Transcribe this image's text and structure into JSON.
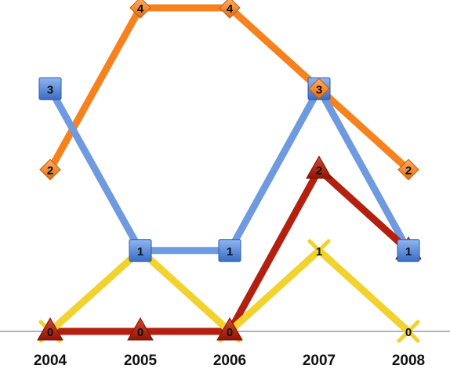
{
  "chart_data": {
    "type": "line",
    "title": "",
    "xlabel": "",
    "ylabel": "",
    "categories": [
      "2004",
      "2005",
      "2006",
      "2007",
      "2008"
    ],
    "ylim": [
      0,
      4
    ],
    "grid": false,
    "legend": "none",
    "series": [
      {
        "color": "#f6821f",
        "marker": "diamond",
        "values": [
          2,
          4,
          4,
          3,
          2
        ]
      },
      {
        "color": "#6f9ae0",
        "marker": "square",
        "values": [
          3,
          1,
          1,
          3,
          1
        ]
      },
      {
        "color": "#b4200f",
        "marker": "triangle",
        "values": [
          0,
          0,
          0,
          2,
          1
        ]
      },
      {
        "color": "#f2d22e",
        "marker": "x",
        "values": [
          0,
          1,
          0,
          1,
          0
        ]
      }
    ]
  }
}
